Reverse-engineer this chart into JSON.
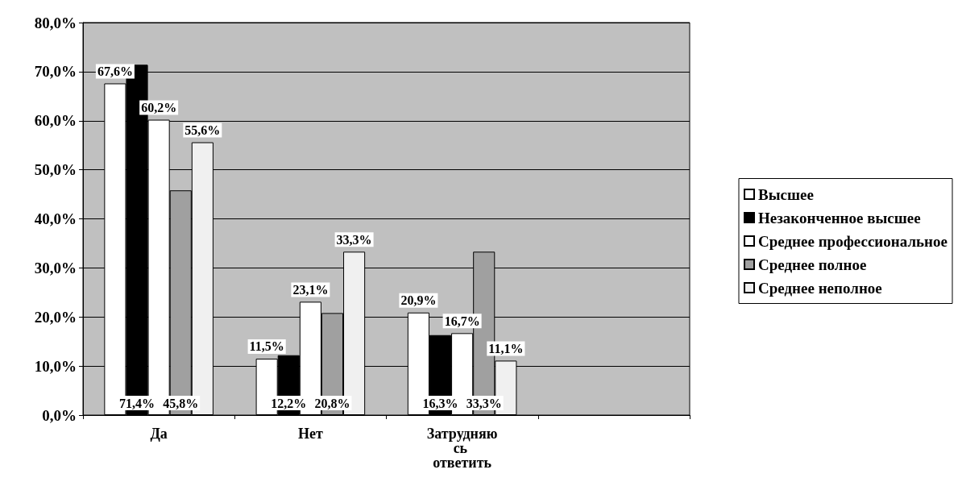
{
  "chart_data": {
    "type": "bar",
    "categories": [
      "Да",
      "Нет",
      "Затрудняюсь ответить",
      null
    ],
    "series": [
      {
        "name": "Высшее",
        "color": "#ffffff",
        "values": [
          67.6,
          11.5,
          20.9,
          null
        ],
        "value_labels": [
          "67,6%",
          "11,5%",
          "20,9%",
          null
        ]
      },
      {
        "name": "Незаконченное высшее",
        "color": "#000000",
        "values": [
          71.4,
          12.2,
          16.3,
          null
        ],
        "value_labels": [
          "71,4%",
          "12,2%",
          "16,3%",
          null
        ]
      },
      {
        "name": "Среднее профессиональное",
        "color": "#ffffff",
        "values": [
          60.2,
          23.1,
          16.7,
          null
        ],
        "value_labels": [
          "60,2%",
          "23,1%",
          "16,7%",
          null
        ]
      },
      {
        "name": "Среднее полное",
        "color": "#a0a0a0",
        "values": [
          45.8,
          20.8,
          33.3,
          null
        ],
        "value_labels": [
          "45,8%",
          "20,8%",
          "33,3%",
          null
        ]
      },
      {
        "name": "Среднее неполное",
        "color": "#f0f0f0",
        "values": [
          55.6,
          33.3,
          11.1,
          null
        ],
        "value_labels": [
          "55,6%",
          "33,3%",
          "11,1%",
          null
        ]
      }
    ],
    "ylim": [
      0,
      80
    ],
    "yticks": [
      {
        "value": 0,
        "label": "0,0%"
      },
      {
        "value": 10,
        "label": "10,0%"
      },
      {
        "value": 20,
        "label": "20,0%"
      },
      {
        "value": 30,
        "label": "30,0%"
      },
      {
        "value": 40,
        "label": "40,0%"
      },
      {
        "value": 50,
        "label": "50,0%"
      },
      {
        "value": 60,
        "label": "60,0%"
      },
      {
        "value": 70,
        "label": "70,0%"
      },
      {
        "value": 80,
        "label": "80,0%"
      }
    ],
    "grid": "y",
    "legend": "right"
  }
}
